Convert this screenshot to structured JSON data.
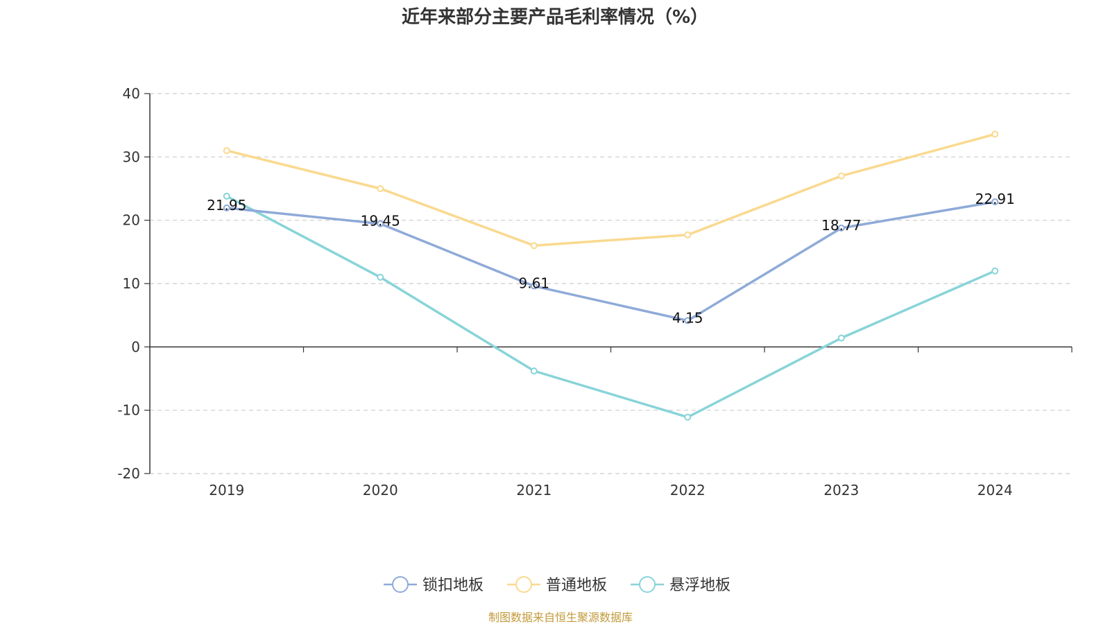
{
  "chart_data": {
    "type": "line",
    "title": "近年来部分主要产品毛利率情况（%）",
    "x": [
      "2019",
      "2020",
      "2021",
      "2022",
      "2023",
      "2024"
    ],
    "ylim": [
      -20,
      40
    ],
    "yticks": [
      40,
      30,
      20,
      10,
      0,
      -10,
      -20
    ],
    "grid": true,
    "legend_position": "bottom-center",
    "series": [
      {
        "name": "锁扣地板",
        "color": "#8eaad8",
        "values": [
          21.95,
          19.45,
          9.61,
          4.15,
          18.77,
          22.91
        ],
        "labels": [
          "21.95",
          "19.45",
          "9.61",
          "4.15",
          "18.77",
          "22.91"
        ]
      },
      {
        "name": "普通地板",
        "color": "#fad98f",
        "values": [
          31.0,
          25.0,
          16.0,
          17.7,
          27.0,
          33.6
        ]
      },
      {
        "name": "悬浮地板",
        "color": "#88d4d8",
        "values": [
          23.8,
          11.0,
          -3.8,
          -11.1,
          1.4,
          12.0
        ]
      }
    ]
  },
  "footer": {
    "source": "制图数据来自恒生聚源数据库"
  }
}
